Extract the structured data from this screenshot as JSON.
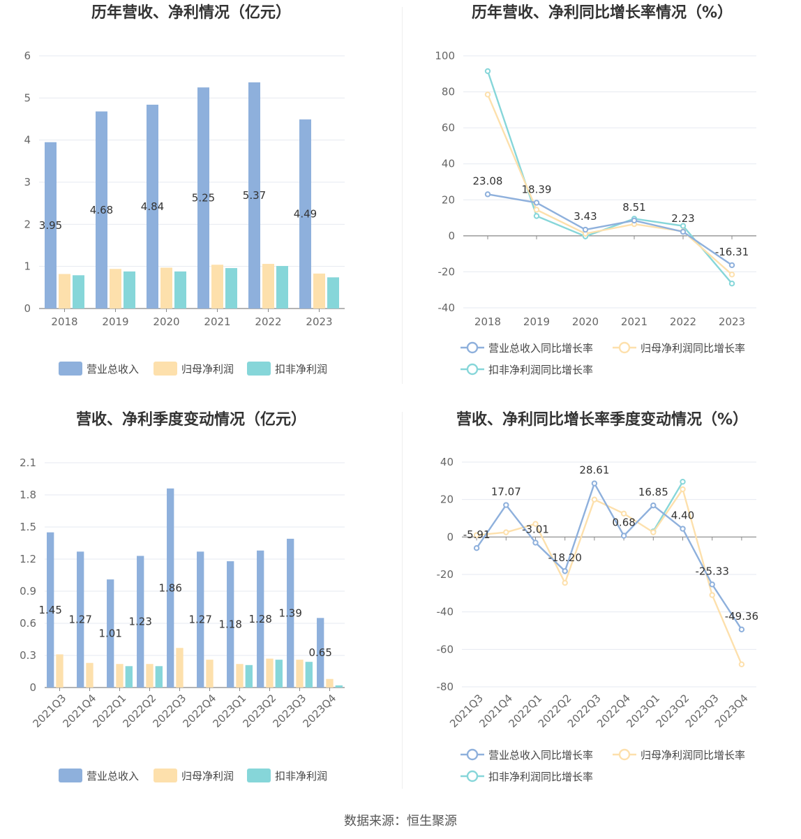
{
  "colors": {
    "revenue": "#8eb0dc",
    "net": "#fde0ac",
    "deducted": "#86d6d9",
    "grid": "#e6e9f0",
    "axis": "#888888"
  },
  "source": "数据来源：恒生聚源",
  "chart_data": [
    {
      "id": "annual-bar",
      "type": "bar",
      "title": "历年营收、净利情况（亿元）",
      "categories": [
        "2018",
        "2019",
        "2020",
        "2021",
        "2022",
        "2023"
      ],
      "ylim": [
        0,
        6
      ],
      "yticks": [
        "0",
        "1",
        "2",
        "3",
        "4",
        "5",
        "6"
      ],
      "series": [
        {
          "name": "营业总收入",
          "values": [
            3.95,
            4.68,
            4.84,
            5.25,
            5.37,
            4.49
          ]
        },
        {
          "name": "归母净利润",
          "values": [
            0.82,
            0.94,
            0.97,
            1.04,
            1.06,
            0.83
          ]
        },
        {
          "name": "扣非净利润",
          "values": [
            0.79,
            0.88,
            0.88,
            0.96,
            1.01,
            0.74
          ]
        }
      ],
      "labels": [
        "3.95",
        "4.68",
        "4.84",
        "5.25",
        "5.37",
        "4.49"
      ]
    },
    {
      "id": "annual-line",
      "type": "line",
      "title": "历年营收、净利同比增长率情况（%）",
      "categories": [
        "2018",
        "2019",
        "2020",
        "2021",
        "2022",
        "2023"
      ],
      "ylim": [
        -40,
        100
      ],
      "yticks": [
        "-40",
        "-20",
        "0",
        "20",
        "40",
        "60",
        "80",
        "100"
      ],
      "series": [
        {
          "name": "营业总收入同比增长率",
          "values": [
            23.08,
            18.39,
            3.43,
            8.51,
            2.23,
            -16.31
          ]
        },
        {
          "name": "归母净利润同比增长率",
          "values": [
            78.5,
            14.5,
            1.2,
            6.5,
            2.5,
            -21.5
          ]
        },
        {
          "name": "扣非净利润同比增长率",
          "values": [
            91.5,
            11.0,
            -0.3,
            9.5,
            5.5,
            -26.5
          ]
        }
      ],
      "labels": [
        "23.08",
        "18.39",
        "3.43",
        "8.51",
        "2.23",
        "-16.31"
      ]
    },
    {
      "id": "quarter-bar",
      "type": "bar",
      "title": "营收、净利季度变动情况（亿元）",
      "categories": [
        "2021Q3",
        "2021Q4",
        "2022Q1",
        "2022Q2",
        "2022Q3",
        "2022Q4",
        "2023Q1",
        "2023Q2",
        "2023Q3",
        "2023Q4"
      ],
      "ylim": [
        0,
        2.1
      ],
      "yticks": [
        "0",
        "0.3",
        "0.6",
        "0.9",
        "1.2",
        "1.5",
        "1.8",
        "2.1"
      ],
      "series": [
        {
          "name": "营业总收入",
          "values": [
            1.45,
            1.27,
            1.01,
            1.23,
            1.86,
            1.27,
            1.18,
            1.28,
            1.39,
            0.65
          ]
        },
        {
          "name": "归母净利润",
          "values": [
            0.31,
            0.23,
            0.22,
            0.22,
            0.37,
            0.26,
            0.22,
            0.27,
            0.26,
            0.08
          ]
        },
        {
          "name": "扣非净利润",
          "values": [
            0.0,
            0.0,
            0.2,
            0.2,
            0.0,
            0.0,
            0.21,
            0.26,
            0.24,
            0.02
          ]
        }
      ],
      "labels": [
        "1.45",
        "1.27",
        "1.01",
        "1.23",
        "1.86",
        "1.27",
        "1.18",
        "1.28",
        "1.39",
        "0.65"
      ]
    },
    {
      "id": "quarter-line",
      "type": "line",
      "title": "营收、净利同比增长率季度变动情况（%）",
      "categories": [
        "2021Q3",
        "2021Q4",
        "2022Q1",
        "2022Q2",
        "2022Q3",
        "2022Q4",
        "2023Q1",
        "2023Q2",
        "2023Q3",
        "2023Q4"
      ],
      "ylim": [
        -80,
        40
      ],
      "yticks": [
        "-80",
        "-60",
        "-40",
        "-20",
        "0",
        "20",
        "40"
      ],
      "series": [
        {
          "name": "营业总收入同比增长率",
          "values": [
            -5.91,
            17.07,
            -3.01,
            -18.2,
            28.61,
            0.68,
            16.85,
            4.4,
            -25.33,
            -49.36
          ]
        },
        {
          "name": "归母净利润同比增长率",
          "values": [
            1.0,
            2.5,
            7.0,
            -24.5,
            20.0,
            12.5,
            2.5,
            25.5,
            -31.0,
            -68.0
          ]
        },
        {
          "name": "扣非净利润同比增长率",
          "values": [
            null,
            null,
            null,
            null,
            null,
            null,
            3.0,
            29.5,
            null,
            null
          ]
        }
      ],
      "labels": [
        "-5.91",
        "17.07",
        "-3.01",
        "-18.20",
        "28.61",
        "0.68",
        "16.85",
        "4.40",
        "-25.33",
        "-49.36"
      ]
    }
  ]
}
